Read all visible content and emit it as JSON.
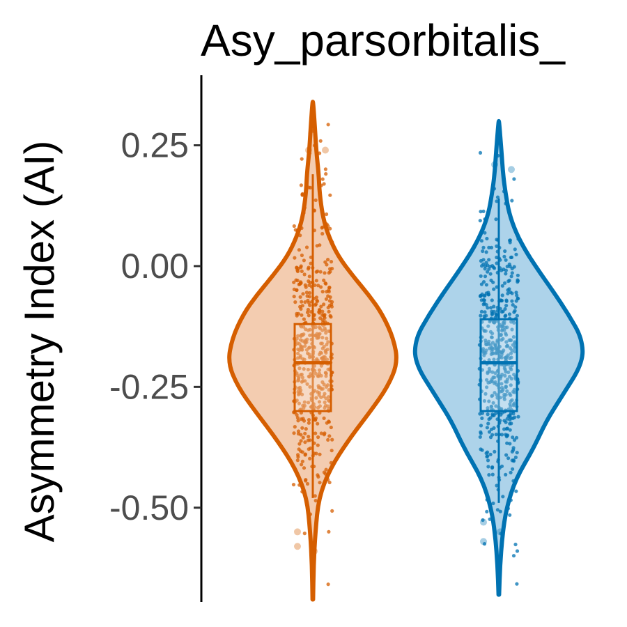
{
  "chart_data": {
    "type": "violin",
    "title": "Asy_parsorbitalis_",
    "xlabel": "",
    "ylabel": "Asymmetry Index (AI)",
    "ylim": [
      -0.695,
      0.395
    ],
    "yticks": [
      0.25,
      0.0,
      -0.25,
      -0.5
    ],
    "ytick_labels": [
      "0.25",
      "0.00",
      "-0.25",
      "-0.50"
    ],
    "grid": false,
    "legend": "none",
    "groups": [
      {
        "color": "#D55E00",
        "fill": "#F3CCB0",
        "range": [
          -0.69,
          0.34
        ],
        "box": {
          "q1": -0.3,
          "median": -0.2,
          "q3": -0.12
        },
        "whiskers": [
          -0.48,
          0.19
        ],
        "outliers": [
          0.24,
          0.24,
          -0.55,
          -0.59,
          -0.58
        ],
        "density": [
          [
            -0.69,
            0.003
          ],
          [
            -0.62,
            0.01
          ],
          [
            -0.55,
            0.03
          ],
          [
            -0.48,
            0.07
          ],
          [
            -0.42,
            0.2
          ],
          [
            -0.36,
            0.42
          ],
          [
            -0.3,
            0.68
          ],
          [
            -0.25,
            0.88
          ],
          [
            -0.2,
            1.0
          ],
          [
            -0.15,
            0.95
          ],
          [
            -0.1,
            0.82
          ],
          [
            -0.06,
            0.66
          ],
          [
            -0.02,
            0.47
          ],
          [
            0.02,
            0.3
          ],
          [
            0.06,
            0.19
          ],
          [
            0.1,
            0.12
          ],
          [
            0.15,
            0.08
          ],
          [
            0.19,
            0.07
          ],
          [
            0.24,
            0.04
          ],
          [
            0.3,
            0.02
          ],
          [
            0.34,
            0.003
          ]
        ]
      },
      {
        "color": "#0072B2",
        "fill": "#ADD3EA",
        "range": [
          -0.68,
          0.3
        ],
        "box": {
          "q1": -0.3,
          "median": -0.2,
          "q3": -0.11
        },
        "whiskers": [
          -0.49,
          0.14
        ],
        "outliers": [
          0.21,
          0.2,
          -0.57,
          -0.55,
          -0.53
        ],
        "density": [
          [
            -0.68,
            0.003
          ],
          [
            -0.62,
            0.015
          ],
          [
            -0.56,
            0.04
          ],
          [
            -0.5,
            0.09
          ],
          [
            -0.44,
            0.2
          ],
          [
            -0.38,
            0.4
          ],
          [
            -0.32,
            0.56
          ],
          [
            -0.27,
            0.74
          ],
          [
            -0.2,
            0.99
          ],
          [
            -0.15,
            0.98
          ],
          [
            -0.1,
            0.82
          ],
          [
            -0.05,
            0.63
          ],
          [
            -0.01,
            0.47
          ],
          [
            0.03,
            0.32
          ],
          [
            0.07,
            0.2
          ],
          [
            0.11,
            0.12
          ],
          [
            0.15,
            0.08
          ],
          [
            0.19,
            0.05
          ],
          [
            0.24,
            0.03
          ],
          [
            0.3,
            0.003
          ]
        ]
      }
    ]
  }
}
